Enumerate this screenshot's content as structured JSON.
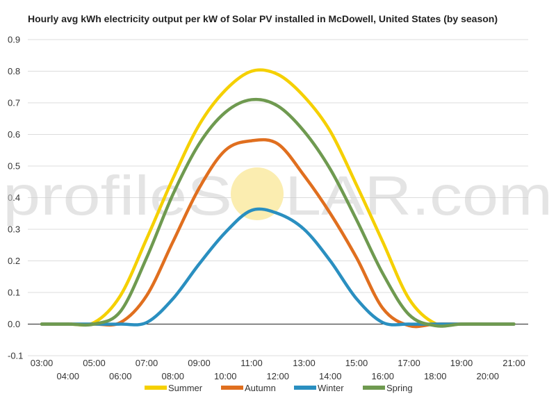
{
  "chart_data": {
    "type": "line",
    "title": "Hourly avg kWh electricity output per kW of Solar PV installed in McDowell, United States (by season)",
    "xlabel": "",
    "ylabel": "",
    "x": [
      "03:00",
      "04:00",
      "05:00",
      "06:00",
      "07:00",
      "08:00",
      "09:00",
      "10:00",
      "11:00",
      "12:00",
      "13:00",
      "14:00",
      "15:00",
      "16:00",
      "17:00",
      "18:00",
      "19:00",
      "20:00",
      "21:00"
    ],
    "ylim": [
      -0.1,
      0.9
    ],
    "yticks": [
      "-0.1",
      "0.0",
      "0.1",
      "0.2",
      "0.3",
      "0.4",
      "0.5",
      "0.6",
      "0.7",
      "0.8",
      "0.9"
    ],
    "grid": true,
    "legend_position": "bottom",
    "series": [
      {
        "name": "Summer",
        "color": "#f5d000",
        "values": [
          0,
          0,
          0.005,
          0.09,
          0.27,
          0.46,
          0.63,
          0.74,
          0.8,
          0.79,
          0.72,
          0.61,
          0.44,
          0.26,
          0.08,
          0.002,
          0,
          0,
          0
        ]
      },
      {
        "name": "Autumn",
        "color": "#e06f1f",
        "values": [
          0,
          0,
          0,
          0.005,
          0.09,
          0.26,
          0.43,
          0.55,
          0.58,
          0.57,
          0.47,
          0.35,
          0.21,
          0.05,
          -0.005,
          0,
          0,
          0,
          0
        ]
      },
      {
        "name": "Winter",
        "color": "#2a8fc0",
        "values": [
          0,
          0,
          0,
          0,
          0.005,
          0.08,
          0.19,
          0.29,
          0.36,
          0.35,
          0.3,
          0.2,
          0.08,
          0.005,
          0,
          0,
          0,
          0,
          0
        ]
      },
      {
        "name": "Spring",
        "color": "#6f9a50",
        "values": [
          0,
          0,
          0,
          0.04,
          0.21,
          0.41,
          0.57,
          0.67,
          0.71,
          0.69,
          0.61,
          0.49,
          0.33,
          0.16,
          0.03,
          -0.005,
          0,
          0,
          0
        ]
      }
    ]
  },
  "watermark": {
    "left_text": "profileS",
    "right_text": "LAR.com",
    "sun_color": "#fbedb0"
  }
}
